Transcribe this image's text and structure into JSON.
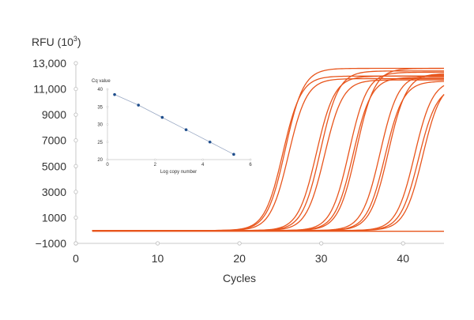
{
  "chart_data": [
    {
      "type": "line",
      "ylabel": "RFU (10",
      "ylabel_sup": "3",
      "ylabel_close": ")",
      "xlabel": "Cycles",
      "xlim": [
        0,
        45
      ],
      "ylim": [
        -1000,
        13000
      ],
      "x_ticks": [
        0,
        10,
        20,
        30,
        40
      ],
      "x_tick_labels": [
        "0",
        "10",
        "20",
        "30",
        "40"
      ],
      "y_ticks": [
        -1000,
        1000,
        3000,
        5000,
        7000,
        9000,
        11000,
        13000
      ],
      "y_tick_labels": [
        "−1000",
        "1000",
        "3000",
        "5000",
        "7000",
        "9000",
        "11,000",
        "13,000"
      ],
      "grid": false,
      "series_color": "#e8551c",
      "curve_x_start": 2,
      "baseline_value": 0,
      "series": [
        {
          "midpoint": 25.3,
          "plateau": 12000,
          "slope": 0.9
        },
        {
          "midpoint": 25.6,
          "plateau": 12600,
          "slope": 0.9
        },
        {
          "midpoint": 26.0,
          "plateau": 11800,
          "slope": 0.9
        },
        {
          "midpoint": 29.4,
          "plateau": 12000,
          "slope": 0.9
        },
        {
          "midpoint": 29.9,
          "plateau": 12400,
          "slope": 0.9
        },
        {
          "midpoint": 30.4,
          "plateau": 11700,
          "slope": 0.9
        },
        {
          "midpoint": 33.4,
          "plateau": 12300,
          "slope": 0.9
        },
        {
          "midpoint": 33.9,
          "plateau": 11900,
          "slope": 0.9
        },
        {
          "midpoint": 34.3,
          "plateau": 12600,
          "slope": 0.9
        },
        {
          "midpoint": 37.2,
          "plateau": 12100,
          "slope": 0.9
        },
        {
          "midpoint": 37.8,
          "plateau": 11600,
          "slope": 0.9
        },
        {
          "midpoint": 38.2,
          "plateau": 12200,
          "slope": 0.9
        },
        {
          "midpoint": 41.4,
          "plateau": 11700,
          "slope": 0.9
        },
        {
          "midpoint": 41.9,
          "plateau": 11200,
          "slope": 0.9
        },
        {
          "midpoint": 42.4,
          "plateau": 11600,
          "slope": 0.9
        }
      ]
    },
    {
      "type": "scatter",
      "title": "Cq value",
      "xlabel": "Log copy number",
      "xlim": [
        0,
        6
      ],
      "ylim": [
        20,
        40
      ],
      "x_ticks": [
        0,
        2,
        4,
        6
      ],
      "x_tick_labels": [
        "0",
        "2",
        "4",
        "6"
      ],
      "y_ticks": [
        20,
        25,
        30,
        35,
        40
      ],
      "y_tick_labels": [
        "20",
        "25",
        "30",
        "35",
        "40"
      ],
      "points_color": "#1f4e8c",
      "fit_color": "#9aa9c4",
      "x": [
        0.3,
        1.3,
        2.3,
        3.3,
        4.3,
        5.3
      ],
      "y": [
        38.5,
        35.5,
        32.0,
        28.5,
        25.0,
        21.5
      ]
    }
  ]
}
